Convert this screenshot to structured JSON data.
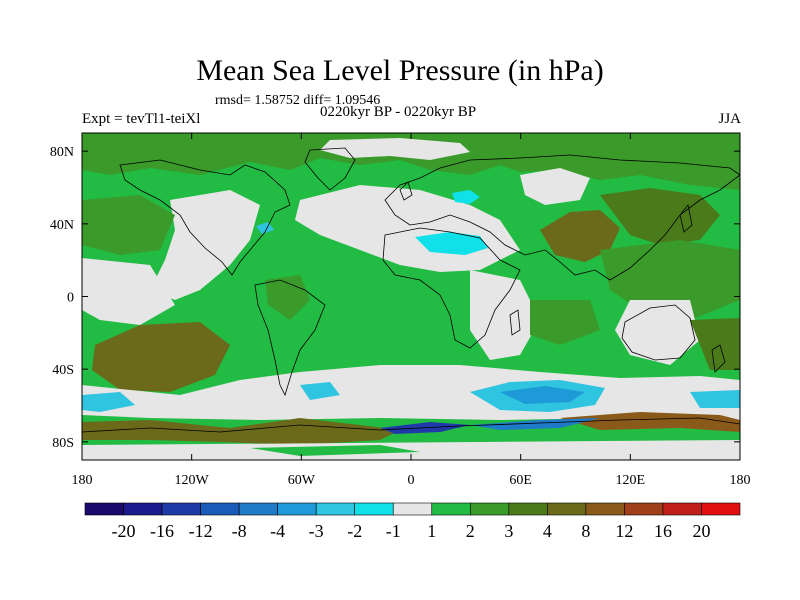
{
  "header": {
    "title": "Mean Sea Level Pressure (in hPa)",
    "stats": "rmsd= 1.58752  diff= 1.09546",
    "experiment": "Expt = tevTl1-teiXl",
    "period": "0220kyr BP - 0220kyr BP",
    "season": "JJA"
  },
  "axes": {
    "x_ticks": [
      "180",
      "120W",
      "60W",
      "0",
      "60E",
      "120E",
      "180"
    ],
    "x_values": [
      -180,
      -120,
      -60,
      0,
      60,
      120,
      180
    ],
    "y_ticks": [
      "80N",
      "40N",
      "0",
      "40S",
      "80S"
    ],
    "y_values": [
      80,
      40,
      0,
      -40,
      -80
    ],
    "lon_range": [
      -180,
      180
    ],
    "lat_range": [
      -90,
      90
    ]
  },
  "colorbar": {
    "labels": [
      "-20",
      "-16",
      "-12",
      "-8",
      "-4",
      "-3",
      "-2",
      "-1",
      "1",
      "2",
      "3",
      "4",
      "8",
      "12",
      "16",
      "20"
    ],
    "colors": [
      "#1a0a6b",
      "#1c1a8c",
      "#1f3aa8",
      "#1a5ab8",
      "#1f7ac8",
      "#1f9ad8",
      "#2fc4e0",
      "#10e0e8",
      "#e6e6e6",
      "#22bb44",
      "#3a9a2a",
      "#4a7a1a",
      "#6a6a1a",
      "#8a5a1a",
      "#a0401a",
      "#c0201a",
      "#e01010"
    ]
  },
  "colors": {
    "background_field": "#22bb44",
    "neutral": "#e6e6e6",
    "positive_mid": "#3a9a2a",
    "positive_high": "#6a6a1a",
    "negative_low": "#10e0e8",
    "negative_mid": "#2fc4e0",
    "coast": "#000000"
  }
}
